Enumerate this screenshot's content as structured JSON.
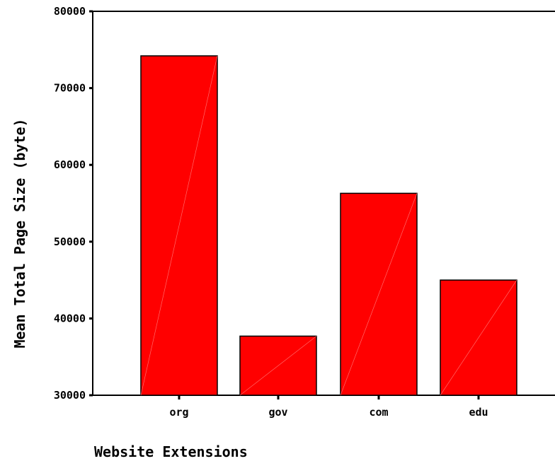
{
  "chart_data": {
    "type": "bar",
    "title": "",
    "xlabel": "Website Extensions",
    "ylabel": "Mean Total Page Size (byte)",
    "categories": [
      "org",
      "gov",
      "com",
      "edu"
    ],
    "values": [
      74200,
      37700,
      56300,
      45000
    ],
    "ylim": [
      30000,
      80000
    ],
    "yticks": [
      30000,
      40000,
      50000,
      60000,
      70000,
      80000
    ],
    "ytick_labels": [
      "30000",
      "40000",
      "50000",
      "60000",
      "70000",
      "80000"
    ],
    "bar_color": "#ff0000",
    "grid": false,
    "legend": "none"
  }
}
